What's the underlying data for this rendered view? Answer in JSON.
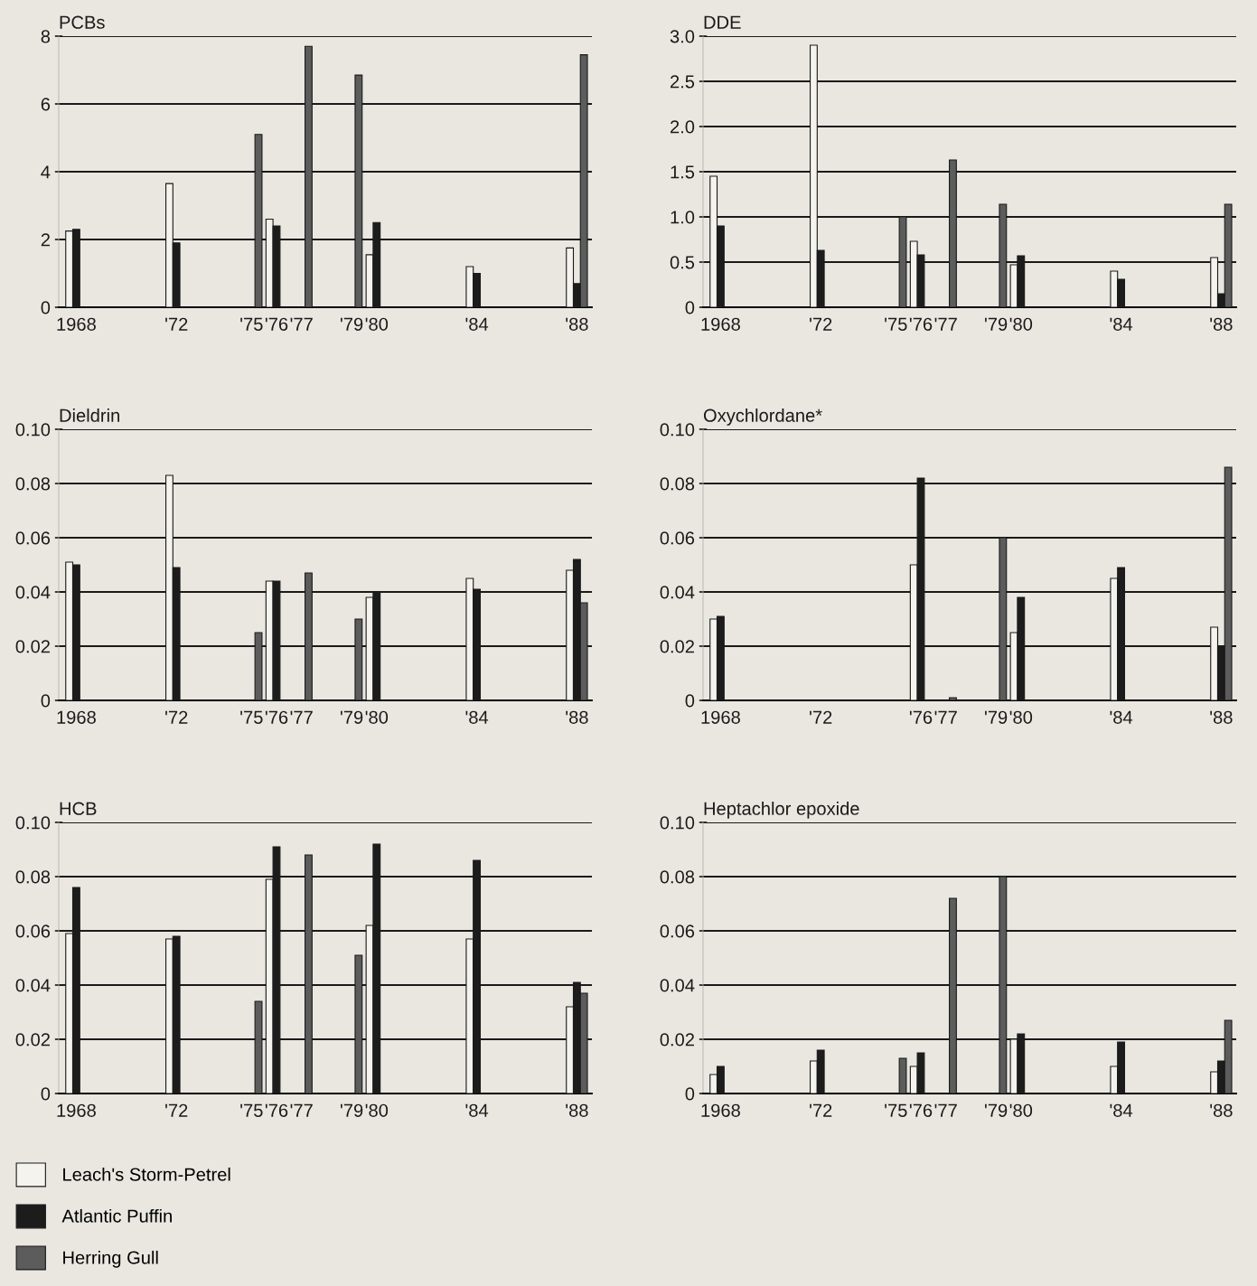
{
  "chart_data": [
    {
      "type": "bar",
      "title": "PCBs",
      "x": [
        1968,
        1972,
        1975,
        1976,
        1977,
        1979,
        1980,
        1984,
        1988
      ],
      "xlim": [
        1967.3,
        1988.6
      ],
      "xticks": [
        {
          "value": 1968,
          "label": "1968"
        },
        {
          "value": 1972,
          "label": "'72"
        },
        {
          "value": 1975,
          "label": "'75"
        },
        {
          "value": 1976,
          "label": "'76"
        },
        {
          "value": 1977,
          "label": "'77"
        },
        {
          "value": 1979,
          "label": "'79"
        },
        {
          "value": 1980,
          "label": "'80"
        },
        {
          "value": 1984,
          "label": "'84"
        },
        {
          "value": 1988,
          "label": "'88"
        }
      ],
      "ylim": [
        0,
        8
      ],
      "yticks": [
        0,
        2,
        4,
        6,
        8
      ],
      "grid": "y",
      "legend": "bottom left",
      "series": [
        {
          "name": "Leach's Storm-Petrel",
          "color": "#f4f3ee",
          "values": [
            2.25,
            3.65,
            null,
            2.6,
            null,
            null,
            1.55,
            1.2,
            1.75
          ]
        },
        {
          "name": "Atlantic Puffin",
          "color": "#1c1c1c",
          "values": [
            2.3,
            1.9,
            null,
            2.4,
            null,
            null,
            2.5,
            1.0,
            0.7
          ]
        },
        {
          "name": "Herring Gull",
          "color": "#5c5c5c",
          "values": [
            null,
            null,
            5.1,
            null,
            7.7,
            6.85,
            null,
            null,
            7.45
          ]
        }
      ]
    },
    {
      "type": "bar",
      "title": "DDE",
      "x": [
        1968,
        1972,
        1975,
        1976,
        1977,
        1979,
        1980,
        1984,
        1988
      ],
      "xlim": [
        1967.3,
        1988.6
      ],
      "xticks": [
        {
          "value": 1968,
          "label": "1968"
        },
        {
          "value": 1972,
          "label": "'72"
        },
        {
          "value": 1975,
          "label": "'75"
        },
        {
          "value": 1976,
          "label": "'76"
        },
        {
          "value": 1977,
          "label": "'77"
        },
        {
          "value": 1979,
          "label": "'79"
        },
        {
          "value": 1980,
          "label": "'80"
        },
        {
          "value": 1984,
          "label": "'84"
        },
        {
          "value": 1988,
          "label": "'88"
        }
      ],
      "ylim": [
        0,
        3.0
      ],
      "yticks": [
        0,
        0.5,
        {
          "value": 1.0,
          "label": "1.0"
        },
        1.5,
        {
          "value": 2.0,
          "label": "2.0"
        },
        2.5,
        {
          "value": 3.0,
          "label": "3.0"
        }
      ],
      "grid": "y",
      "series": [
        {
          "color": "#f4f3ee",
          "values": [
            1.45,
            2.9,
            null,
            0.73,
            null,
            null,
            0.47,
            0.4,
            0.55
          ]
        },
        {
          "color": "#1c1c1c",
          "values": [
            0.9,
            0.63,
            null,
            0.58,
            null,
            null,
            0.57,
            0.31,
            0.15
          ]
        },
        {
          "color": "#5c5c5c",
          "values": [
            null,
            null,
            1.0,
            null,
            1.63,
            1.14,
            null,
            null,
            1.14
          ]
        }
      ]
    },
    {
      "type": "bar",
      "title": "Dieldrin",
      "x": [
        1968,
        1972,
        1975,
        1976,
        1977,
        1979,
        1980,
        1984,
        1988
      ],
      "xlim": [
        1967.3,
        1988.6
      ],
      "xticks": [
        {
          "value": 1968,
          "label": "1968"
        },
        {
          "value": 1972,
          "label": "'72"
        },
        {
          "value": 1975,
          "label": "'75"
        },
        {
          "value": 1976,
          "label": "'76"
        },
        {
          "value": 1977,
          "label": "'77"
        },
        {
          "value": 1979,
          "label": "'79"
        },
        {
          "value": 1980,
          "label": "'80"
        },
        {
          "value": 1984,
          "label": "'84"
        },
        {
          "value": 1988,
          "label": "'88"
        }
      ],
      "ylim": [
        0,
        0.1
      ],
      "yticks": [
        0,
        0.02,
        0.04,
        0.06,
        0.08,
        {
          "value": 0.1,
          "label": "0.10"
        }
      ],
      "grid": "y",
      "series": [
        {
          "color": "#f4f3ee",
          "values": [
            0.051,
            0.083,
            null,
            0.044,
            null,
            null,
            0.038,
            0.045,
            0.048
          ]
        },
        {
          "color": "#1c1c1c",
          "values": [
            0.05,
            0.049,
            null,
            0.044,
            null,
            null,
            0.04,
            0.041,
            0.052
          ]
        },
        {
          "color": "#5c5c5c",
          "values": [
            null,
            null,
            0.025,
            null,
            0.047,
            0.03,
            null,
            null,
            0.036
          ]
        }
      ]
    },
    {
      "type": "bar",
      "title": "Oxychlordane*",
      "x": [
        1968,
        1972,
        1975,
        1976,
        1977,
        1979,
        1980,
        1984,
        1988
      ],
      "xlim": [
        1967.3,
        1988.6
      ],
      "xticks": [
        {
          "value": 1968,
          "label": "1968"
        },
        {
          "value": 1972,
          "label": "'72"
        },
        {
          "value": 1976,
          "label": "'76"
        },
        {
          "value": 1977,
          "label": "'77"
        },
        {
          "value": 1979,
          "label": "'79"
        },
        {
          "value": 1980,
          "label": "'80"
        },
        {
          "value": 1984,
          "label": "'84"
        },
        {
          "value": 1988,
          "label": "'88"
        }
      ],
      "ylim": [
        0,
        0.1
      ],
      "yticks": [
        0,
        0.02,
        0.04,
        0.06,
        0.08,
        {
          "value": 0.1,
          "label": "0.10"
        }
      ],
      "grid": "y",
      "series": [
        {
          "color": "#f4f3ee",
          "values": [
            0.03,
            null,
            null,
            0.05,
            null,
            null,
            0.025,
            0.045,
            0.027
          ]
        },
        {
          "color": "#1c1c1c",
          "values": [
            0.031,
            null,
            null,
            0.082,
            null,
            null,
            0.038,
            0.049,
            0.02
          ]
        },
        {
          "color": "#5c5c5c",
          "values": [
            null,
            null,
            null,
            null,
            0.001,
            0.06,
            null,
            null,
            0.086
          ]
        }
      ]
    },
    {
      "type": "bar",
      "title": "HCB",
      "x": [
        1968,
        1972,
        1975,
        1976,
        1977,
        1979,
        1980,
        1984,
        1988
      ],
      "xlim": [
        1967.3,
        1988.6
      ],
      "xticks": [
        {
          "value": 1968,
          "label": "1968"
        },
        {
          "value": 1972,
          "label": "'72"
        },
        {
          "value": 1975,
          "label": "'75"
        },
        {
          "value": 1976,
          "label": "'76"
        },
        {
          "value": 1977,
          "label": "'77"
        },
        {
          "value": 1979,
          "label": "'79"
        },
        {
          "value": 1980,
          "label": "'80"
        },
        {
          "value": 1984,
          "label": "'84"
        },
        {
          "value": 1988,
          "label": "'88"
        }
      ],
      "ylim": [
        0,
        0.1
      ],
      "yticks": [
        0,
        0.02,
        0.04,
        0.06,
        0.08,
        {
          "value": 0.1,
          "label": "0.10"
        }
      ],
      "grid": "y",
      "series": [
        {
          "color": "#f4f3ee",
          "values": [
            0.059,
            0.057,
            null,
            0.079,
            null,
            null,
            0.062,
            0.057,
            0.032
          ]
        },
        {
          "color": "#1c1c1c",
          "values": [
            0.076,
            0.058,
            null,
            0.091,
            null,
            null,
            0.092,
            0.086,
            0.041
          ]
        },
        {
          "color": "#5c5c5c",
          "values": [
            null,
            null,
            0.034,
            null,
            0.088,
            0.051,
            null,
            null,
            0.037
          ]
        }
      ]
    },
    {
      "type": "bar",
      "title": "Heptachlor epoxide",
      "x": [
        1968,
        1972,
        1975,
        1976,
        1977,
        1979,
        1980,
        1984,
        1988
      ],
      "xlim": [
        1967.3,
        1988.6
      ],
      "xticks": [
        {
          "value": 1968,
          "label": "1968"
        },
        {
          "value": 1972,
          "label": "'72"
        },
        {
          "value": 1975,
          "label": "'75"
        },
        {
          "value": 1976,
          "label": "'76"
        },
        {
          "value": 1977,
          "label": "'77"
        },
        {
          "value": 1979,
          "label": "'79"
        },
        {
          "value": 1980,
          "label": "'80"
        },
        {
          "value": 1984,
          "label": "'84"
        },
        {
          "value": 1988,
          "label": "'88"
        }
      ],
      "ylim": [
        0,
        0.1
      ],
      "yticks": [
        0,
        0.02,
        0.04,
        0.06,
        0.08,
        {
          "value": 0.1,
          "label": "0.10"
        }
      ],
      "grid": "y",
      "series": [
        {
          "color": "#f4f3ee",
          "values": [
            0.007,
            0.012,
            null,
            0.01,
            null,
            null,
            0.02,
            0.01,
            0.008
          ]
        },
        {
          "color": "#1c1c1c",
          "values": [
            0.01,
            0.016,
            null,
            0.015,
            null,
            null,
            0.022,
            0.019,
            0.012
          ]
        },
        {
          "color": "#5c5c5c",
          "values": [
            null,
            null,
            0.013,
            null,
            0.072,
            0.08,
            null,
            null,
            0.027
          ]
        }
      ]
    }
  ]
}
